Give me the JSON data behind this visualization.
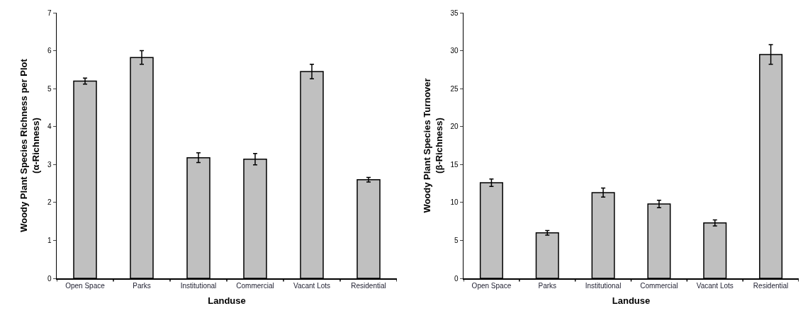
{
  "chart_data": [
    {
      "type": "bar",
      "xlabel": "Landuse",
      "ylabel": "Woody Plant Species Richness per Plot\n(α-Richness)",
      "categories": [
        "Open Space",
        "Parks",
        "Institutional",
        "Commercial",
        "Vacant Lots",
        "Residential"
      ],
      "values": [
        5.2,
        5.82,
        3.18,
        3.14,
        5.45,
        2.6
      ],
      "color": "#c0c0c0",
      "errors": [
        0.08,
        0.18,
        0.13,
        0.15,
        0.19,
        0.06
      ],
      "ylim": [
        0,
        7
      ],
      "yticks": [
        0,
        1,
        2,
        3,
        4,
        5,
        6,
        7
      ],
      "grid": false,
      "legend": false
    },
    {
      "type": "bar",
      "xlabel": "Landuse",
      "ylabel": "Woody Plant Species Turnover\n(β-Richness)",
      "categories": [
        "Open Space",
        "Parks",
        "Institutional",
        "Commercial",
        "Vacant Lots",
        "Residential"
      ],
      "values": [
        12.6,
        6.0,
        11.3,
        9.8,
        7.3,
        29.5
      ],
      "color": "#c0c0c0",
      "errors": [
        0.5,
        0.3,
        0.6,
        0.5,
        0.4,
        1.3
      ],
      "ylim": [
        0,
        35
      ],
      "yticks": [
        0,
        5,
        10,
        15,
        20,
        25,
        30,
        35
      ],
      "grid": false,
      "legend": false
    }
  ]
}
